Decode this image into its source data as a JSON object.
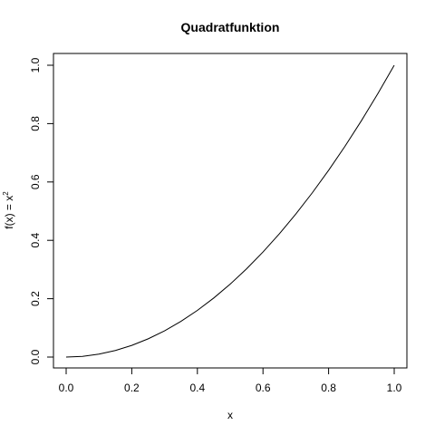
{
  "chart_data": {
    "type": "line",
    "title": "Quadratfunktion",
    "xlabel": "x",
    "ylabel_main": "f(x) = x",
    "ylabel_superscript": "2",
    "xlim": [
      0,
      1
    ],
    "ylim": [
      0,
      1
    ],
    "x_ticks": [
      "0.0",
      "0.2",
      "0.4",
      "0.6",
      "0.8",
      "1.0"
    ],
    "y_ticks": [
      "0.0",
      "0.2",
      "0.4",
      "0.6",
      "0.8",
      "1.0"
    ],
    "grid": false,
    "line_color": "#000000",
    "series": [
      {
        "x": [
          0.0,
          0.05,
          0.1,
          0.15,
          0.2,
          0.25,
          0.3,
          0.35,
          0.4,
          0.45,
          0.5,
          0.55,
          0.6,
          0.65,
          0.7,
          0.75,
          0.8,
          0.85,
          0.9,
          0.95,
          1.0
        ],
        "values": [
          0.0,
          0.0025,
          0.01,
          0.0225,
          0.04,
          0.0625,
          0.09,
          0.1225,
          0.16,
          0.2025,
          0.25,
          0.3025,
          0.36,
          0.4225,
          0.49,
          0.5625,
          0.64,
          0.7225,
          0.81,
          0.9025,
          1.0
        ]
      }
    ]
  }
}
